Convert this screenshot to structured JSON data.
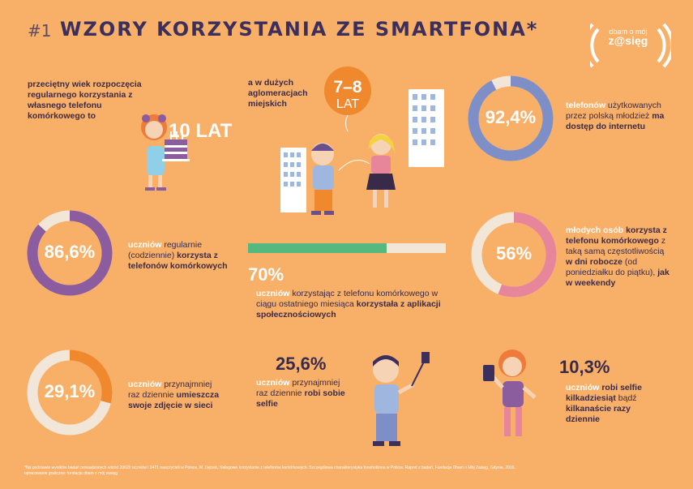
{
  "header": {
    "number": "#1",
    "title": "WZORY KORZYSTANIA ZE SMARTFONA*"
  },
  "logo": {
    "line1": "dbam o mój",
    "line2": "z@sięg"
  },
  "block_age": {
    "text_plain": "przeciętny wiek rozpoczęcia regularnego korzystania z własnego telefonu komórkowego to",
    "value": "10 LAT"
  },
  "block_city": {
    "text_plain": "a w dużych aglomeracjach miejskich",
    "value_top": "7–8",
    "value_bottom": "LAT"
  },
  "stat_1": {
    "value": "92,4%",
    "fraction": 0.924,
    "text_accent": "telefonów",
    "text_plain": " użytkowanych przez polską młodzież ",
    "text_bold": "ma dostęp do internetu"
  },
  "stat_2": {
    "value": "86,6%",
    "fraction": 0.866,
    "text_accent": "uczniów",
    "text_plain": " regularnie (codziennie) ",
    "text_bold": "korzysta z telefonów komórkowych"
  },
  "stat_3": {
    "value": "70%",
    "fraction": 0.7,
    "text_accent": "uczniów",
    "text_plain": " korzystając z telefonu komórkowego w ciągu ostatniego miesiąca ",
    "text_bold": "korzystała z aplikacji społecznościowych"
  },
  "stat_4": {
    "value": "56%",
    "fraction": 0.56,
    "text_accent": "młodych osób",
    "text_bold1": " korzysta z telefonu komórkowego",
    "text_plain1": " z taką samą częstotliwością ",
    "text_bold2": "w dni robocze",
    "text_plain2": " (od poniedziałku do piątku), ",
    "text_bold3": "jak w weekendy"
  },
  "stat_5": {
    "value": "29,1%",
    "fraction": 0.291,
    "text_accent": "uczniów",
    "text_plain1": " przynajmniej raz dziennie ",
    "text_bold1": "umieszcza swoje zdjęcie w sieci"
  },
  "stat_6": {
    "value": "25,6%",
    "text_accent": "uczniów",
    "text_plain1": " przynajmniej raz dziennie ",
    "text_bold1": "robi sobie selfie"
  },
  "stat_7": {
    "value": "10,3%",
    "text_accent": "uczniów",
    "text_bold1": " robi selfie kilkadziesiąt",
    "text_plain1": " bądź ",
    "text_bold2": "kilkanaście razy dziennie"
  },
  "footnote": {
    "line1": "*Na podstawie wyników badań prowadzonych wśród 20620 uczniów i 3471 nauczycieli w Polsce, M. Dębski, Nałogowe korzystanie z telefonów komórkowych. Szczegółowa charakterystyka fonoholizmu w Polsce. Raport z badań, Fundacja Dbam o Mój Zasięg, Gdynia, 2016.",
    "line2": "opracowanie graficzne: fundacja dbam o mój zasięg"
  },
  "colors": {
    "background": "#F8B068",
    "ring_track": "#F1E6D8",
    "blue_ring": "#7E8FC8",
    "purple_ring": "#8B5C9E",
    "pink_ring": "#E7869B",
    "orange_ring": "#F0882E",
    "green_bar": "#55B87E",
    "accent_text": "#FFFFFF"
  }
}
